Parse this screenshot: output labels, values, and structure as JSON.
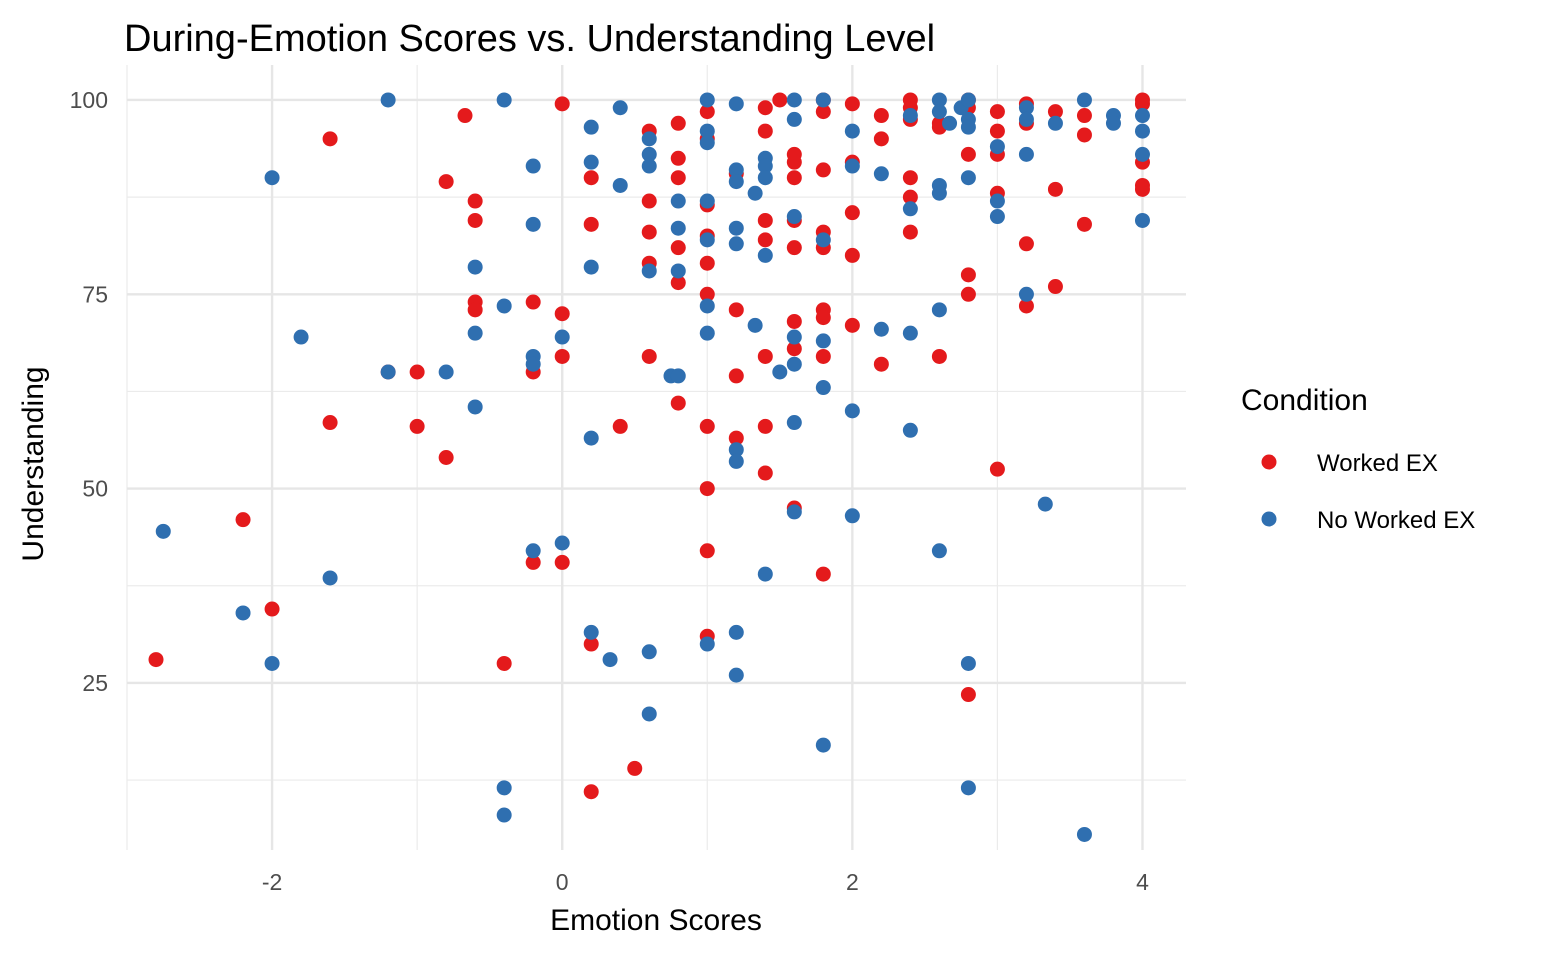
{
  "chart_data": {
    "type": "scatter",
    "title": "During-Emotion Scores vs. Understanding Level",
    "xlabel": "Emotion Scores",
    "ylabel": "Understanding",
    "xlim": [
      -3.0,
      4.3
    ],
    "ylim": [
      3.5,
      104.5
    ],
    "x_ticks": [
      -2,
      0,
      2,
      4
    ],
    "x_tick_labels": [
      "-2",
      "0",
      "2",
      "4"
    ],
    "y_ticks": [
      25,
      50,
      75,
      100
    ],
    "y_tick_labels": [
      "25",
      "50",
      "75",
      "100"
    ],
    "x_minor": [
      -3,
      -1,
      1,
      3
    ],
    "y_minor": [
      12.5,
      37.5,
      62.5,
      87.5
    ],
    "grid": true,
    "legend": {
      "title": "Condition",
      "placement": "right"
    },
    "series": [
      {
        "name": "Worked EX",
        "color": "#e41a1c",
        "points": [
          [
            -2.8,
            28
          ],
          [
            -2.2,
            46
          ],
          [
            -2.0,
            34.5
          ],
          [
            -1.6,
            95
          ],
          [
            -1.6,
            58.5
          ],
          [
            -1.2,
            65
          ],
          [
            -1.0,
            65
          ],
          [
            -1.0,
            58
          ],
          [
            -0.8,
            89.5
          ],
          [
            -0.8,
            54
          ],
          [
            -0.67,
            98
          ],
          [
            -0.6,
            87
          ],
          [
            -0.6,
            84.5
          ],
          [
            -0.6,
            74
          ],
          [
            -0.6,
            73
          ],
          [
            -0.4,
            27.5
          ],
          [
            -0.2,
            74
          ],
          [
            -0.2,
            65
          ],
          [
            -0.2,
            40.5
          ],
          [
            0.0,
            99.5
          ],
          [
            0.0,
            72.5
          ],
          [
            0.0,
            67
          ],
          [
            0.0,
            40.5
          ],
          [
            0.2,
            90
          ],
          [
            0.2,
            84
          ],
          [
            0.2,
            30
          ],
          [
            0.2,
            11
          ],
          [
            0.4,
            58
          ],
          [
            0.5,
            14
          ],
          [
            0.6,
            96
          ],
          [
            0.6,
            87
          ],
          [
            0.6,
            83
          ],
          [
            0.6,
            79
          ],
          [
            0.6,
            67
          ],
          [
            0.8,
            97
          ],
          [
            0.8,
            92.5
          ],
          [
            0.8,
            90
          ],
          [
            0.8,
            81
          ],
          [
            0.8,
            76.5
          ],
          [
            0.8,
            61
          ],
          [
            1.0,
            98.5
          ],
          [
            1.0,
            95
          ],
          [
            1.0,
            86.5
          ],
          [
            1.0,
            82.5
          ],
          [
            1.0,
            79
          ],
          [
            1.0,
            75
          ],
          [
            1.0,
            58
          ],
          [
            1.0,
            50
          ],
          [
            1.0,
            42
          ],
          [
            1.0,
            31
          ],
          [
            1.2,
            90.5
          ],
          [
            1.2,
            73
          ],
          [
            1.2,
            64.5
          ],
          [
            1.2,
            56.5
          ],
          [
            1.4,
            99
          ],
          [
            1.4,
            96
          ],
          [
            1.4,
            84.5
          ],
          [
            1.4,
            82
          ],
          [
            1.4,
            67
          ],
          [
            1.4,
            58
          ],
          [
            1.4,
            52
          ],
          [
            1.5,
            100
          ],
          [
            1.6,
            93
          ],
          [
            1.6,
            92
          ],
          [
            1.6,
            90
          ],
          [
            1.6,
            84.5
          ],
          [
            1.6,
            81
          ],
          [
            1.6,
            71.5
          ],
          [
            1.6,
            68
          ],
          [
            1.6,
            47.5
          ],
          [
            1.8,
            100
          ],
          [
            1.8,
            98.5
          ],
          [
            1.8,
            91
          ],
          [
            1.8,
            83
          ],
          [
            1.8,
            81
          ],
          [
            1.8,
            73
          ],
          [
            1.8,
            72
          ],
          [
            1.8,
            67
          ],
          [
            1.8,
            39
          ],
          [
            2.0,
            99.5
          ],
          [
            2.0,
            92
          ],
          [
            2.0,
            85.5
          ],
          [
            2.0,
            80
          ],
          [
            2.0,
            71
          ],
          [
            2.2,
            98
          ],
          [
            2.2,
            95
          ],
          [
            2.2,
            66
          ],
          [
            2.4,
            100
          ],
          [
            2.4,
            99
          ],
          [
            2.4,
            97.5
          ],
          [
            2.4,
            90
          ],
          [
            2.4,
            87.5
          ],
          [
            2.4,
            83
          ],
          [
            2.6,
            97
          ],
          [
            2.6,
            96.5
          ],
          [
            2.6,
            67
          ],
          [
            2.8,
            100
          ],
          [
            2.8,
            99
          ],
          [
            2.8,
            93
          ],
          [
            2.8,
            77.5
          ],
          [
            2.8,
            75
          ],
          [
            2.8,
            23.5
          ],
          [
            3.0,
            98.5
          ],
          [
            3.0,
            96
          ],
          [
            3.0,
            93
          ],
          [
            3.0,
            88
          ],
          [
            3.0,
            52.5
          ],
          [
            3.2,
            99.5
          ],
          [
            3.2,
            97
          ],
          [
            3.2,
            81.5
          ],
          [
            3.2,
            73.5
          ],
          [
            3.4,
            98.5
          ],
          [
            3.4,
            88.5
          ],
          [
            3.4,
            76
          ],
          [
            3.6,
            98
          ],
          [
            3.6,
            95.5
          ],
          [
            3.6,
            84
          ],
          [
            4.0,
            100
          ],
          [
            4.0,
            99.5
          ],
          [
            4.0,
            92
          ],
          [
            4.0,
            89
          ],
          [
            4.0,
            88.5
          ]
        ]
      },
      {
        "name": "No Worked EX",
        "color": "#2f6fb0",
        "points": [
          [
            -2.75,
            44.5
          ],
          [
            -2.2,
            34
          ],
          [
            -2.0,
            90
          ],
          [
            -2.0,
            27.5
          ],
          [
            -1.8,
            69.5
          ],
          [
            -1.6,
            38.5
          ],
          [
            -1.2,
            100
          ],
          [
            -1.2,
            65
          ],
          [
            -0.8,
            65
          ],
          [
            -0.6,
            78.5
          ],
          [
            -0.6,
            70
          ],
          [
            -0.6,
            60.5
          ],
          [
            -0.4,
            100
          ],
          [
            -0.4,
            73.5
          ],
          [
            -0.4,
            11.5
          ],
          [
            -0.4,
            8
          ],
          [
            -0.2,
            91.5
          ],
          [
            -0.2,
            84
          ],
          [
            -0.2,
            67
          ],
          [
            -0.2,
            66
          ],
          [
            -0.2,
            42
          ],
          [
            0.0,
            69.5
          ],
          [
            0.0,
            43
          ],
          [
            0.2,
            96.5
          ],
          [
            0.2,
            92
          ],
          [
            0.2,
            78.5
          ],
          [
            0.2,
            56.5
          ],
          [
            0.2,
            31.5
          ],
          [
            0.33,
            28
          ],
          [
            0.4,
            99
          ],
          [
            0.4,
            89
          ],
          [
            0.6,
            95
          ],
          [
            0.6,
            93
          ],
          [
            0.6,
            91.5
          ],
          [
            0.6,
            78
          ],
          [
            0.6,
            29
          ],
          [
            0.6,
            21
          ],
          [
            0.8,
            87
          ],
          [
            0.8,
            83.5
          ],
          [
            0.8,
            78
          ],
          [
            0.75,
            64.5
          ],
          [
            0.8,
            64.5
          ],
          [
            1.0,
            100
          ],
          [
            1.0,
            96
          ],
          [
            1.0,
            94.5
          ],
          [
            1.0,
            87
          ],
          [
            1.0,
            82
          ],
          [
            1.0,
            73.5
          ],
          [
            1.0,
            70
          ],
          [
            1.0,
            30
          ],
          [
            1.2,
            99.5
          ],
          [
            1.2,
            91
          ],
          [
            1.2,
            89.5
          ],
          [
            1.2,
            83.5
          ],
          [
            1.2,
            81.5
          ],
          [
            1.2,
            55
          ],
          [
            1.2,
            53.5
          ],
          [
            1.2,
            31.5
          ],
          [
            1.2,
            26
          ],
          [
            1.33,
            88
          ],
          [
            1.33,
            71
          ],
          [
            1.4,
            92.5
          ],
          [
            1.4,
            91.5
          ],
          [
            1.4,
            90
          ],
          [
            1.4,
            80
          ],
          [
            1.4,
            39
          ],
          [
            1.5,
            65
          ],
          [
            1.6,
            100
          ],
          [
            1.6,
            97.5
          ],
          [
            1.6,
            85
          ],
          [
            1.6,
            69.5
          ],
          [
            1.6,
            66
          ],
          [
            1.6,
            58.5
          ],
          [
            1.6,
            47
          ],
          [
            1.8,
            100
          ],
          [
            1.8,
            82
          ],
          [
            1.8,
            69
          ],
          [
            1.8,
            63
          ],
          [
            1.8,
            17
          ],
          [
            2.0,
            96
          ],
          [
            2.0,
            91.5
          ],
          [
            2.0,
            60
          ],
          [
            2.0,
            46.5
          ],
          [
            2.2,
            90.5
          ],
          [
            2.2,
            70.5
          ],
          [
            2.4,
            98
          ],
          [
            2.4,
            86
          ],
          [
            2.4,
            70
          ],
          [
            2.4,
            57.5
          ],
          [
            2.6,
            100
          ],
          [
            2.6,
            98.5
          ],
          [
            2.6,
            89
          ],
          [
            2.6,
            88
          ],
          [
            2.6,
            73
          ],
          [
            2.6,
            42
          ],
          [
            2.67,
            97
          ],
          [
            2.75,
            99
          ],
          [
            2.8,
            100
          ],
          [
            2.8,
            97.5
          ],
          [
            2.8,
            96.5
          ],
          [
            2.8,
            90
          ],
          [
            2.8,
            27.5
          ],
          [
            2.8,
            11.5
          ],
          [
            3.0,
            94
          ],
          [
            3.0,
            87
          ],
          [
            3.0,
            85
          ],
          [
            3.2,
            99
          ],
          [
            3.2,
            97.5
          ],
          [
            3.2,
            93
          ],
          [
            3.2,
            75
          ],
          [
            3.33,
            48
          ],
          [
            3.4,
            97
          ],
          [
            3.6,
            100
          ],
          [
            3.6,
            5.5
          ],
          [
            3.8,
            98
          ],
          [
            3.8,
            97
          ],
          [
            4.0,
            98
          ],
          [
            4.0,
            96
          ],
          [
            4.0,
            93
          ],
          [
            4.0,
            84.5
          ]
        ]
      }
    ]
  }
}
